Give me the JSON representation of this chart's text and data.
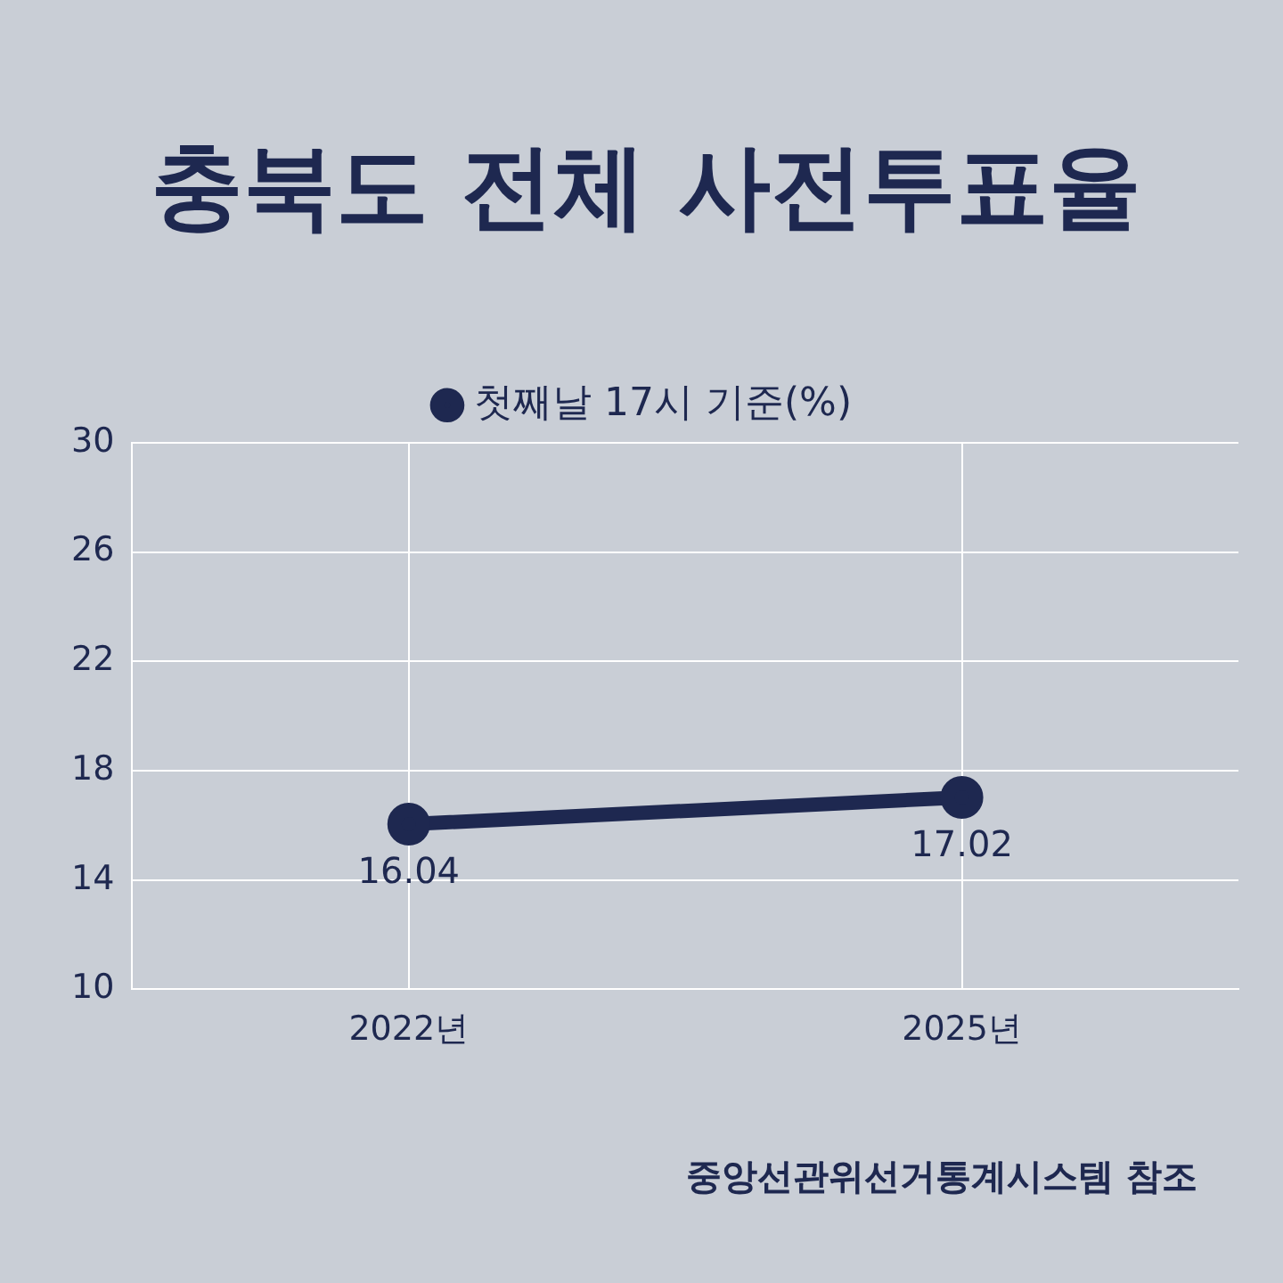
{
  "chart_data": {
    "type": "line",
    "title": "충북도 전체 사전투표율",
    "categories": [
      "2022년",
      "2025년"
    ],
    "series": [
      {
        "name": "첫째날 17시 기준(%)",
        "color": "#1e2850",
        "values": [
          16.04,
          17.02
        ]
      }
    ],
    "ylim": [
      10,
      30
    ],
    "yticks": [
      10,
      14,
      18,
      22,
      26,
      30
    ],
    "grid": true,
    "legend": "top",
    "marker": "circle",
    "line_style": "solid",
    "data_labels": true,
    "annotations": [
      "중앙선관위선거통계시스템 참조"
    ]
  }
}
